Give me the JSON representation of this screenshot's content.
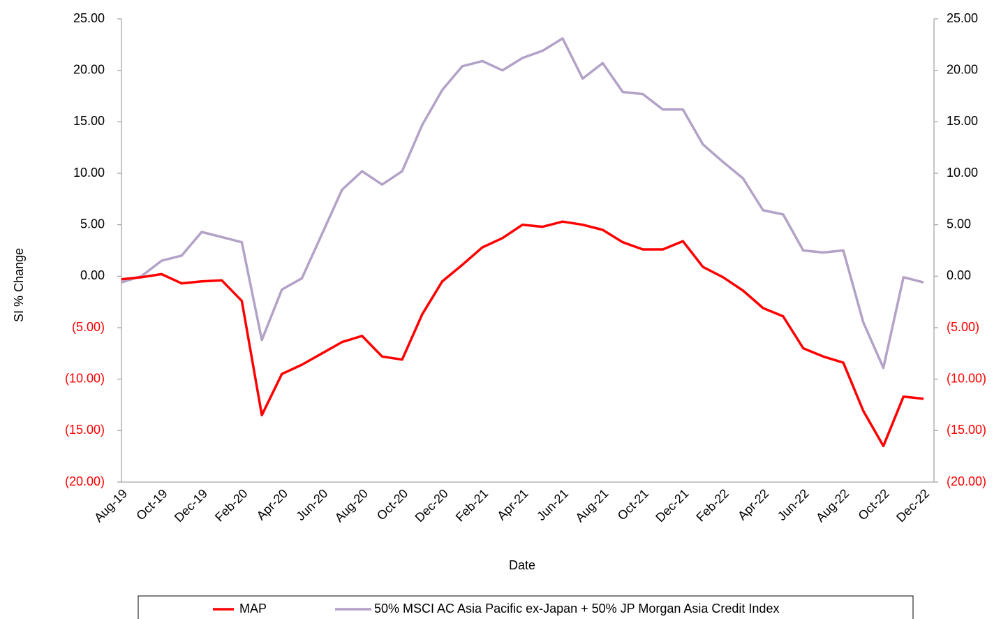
{
  "chart_data": {
    "type": "line",
    "y_label": "SI % Change",
    "x_label": "Date",
    "categories": [
      "Aug-19",
      null,
      "Oct-19",
      null,
      "Dec-19",
      null,
      "Feb-20",
      null,
      "Apr-20",
      null,
      "Jun-20",
      null,
      "Aug-20",
      null,
      "Oct-20",
      null,
      "Dec-20",
      null,
      "Feb-21",
      null,
      "Apr-21",
      null,
      "Jun-21",
      null,
      "Aug-21",
      null,
      "Oct-21",
      null,
      "Dec-21",
      null,
      "Feb-22",
      null,
      "Apr-22",
      null,
      "Jun-22",
      null,
      "Aug-22",
      null,
      "Oct-22",
      null,
      "Dec-22"
    ],
    "series": [
      {
        "name": "MAP",
        "color": "#ff0000",
        "width": 3.5,
        "values": [
          -0.3,
          -0.1,
          0.2,
          -0.7,
          -0.5,
          -0.4,
          -2.4,
          -13.5,
          -9.5,
          -8.6,
          -7.5,
          -6.4,
          -5.8,
          -7.8,
          -8.1,
          -3.7,
          -0.5,
          1.1,
          2.8,
          3.7,
          5.0,
          4.8,
          5.3,
          5.0,
          4.5,
          3.3,
          2.6,
          2.6,
          3.4,
          0.9,
          -0.1,
          -1.4,
          -3.1,
          -3.9,
          -7.0,
          -7.8,
          -8.4,
          -13.1,
          -16.5,
          -11.7,
          -11.9
        ]
      },
      {
        "name": "50% MSCI AC Asia Pacific ex-Japan + 50% JP Morgan Asia Credit Index",
        "color": "#b3a2c7",
        "width": 3.5,
        "values": [
          -0.6,
          0.0,
          1.5,
          2.0,
          4.3,
          3.8,
          3.3,
          -6.2,
          -1.3,
          -0.2,
          4.1,
          8.4,
          10.2,
          8.9,
          10.2,
          14.7,
          18.1,
          20.4,
          20.9,
          20.0,
          21.2,
          21.9,
          23.1,
          19.2,
          20.7,
          17.9,
          17.7,
          16.2,
          16.2,
          12.8,
          11.1,
          9.5,
          6.4,
          6.0,
          2.5,
          2.3,
          2.5,
          -4.5,
          -8.9,
          -0.1,
          -0.6
        ]
      }
    ],
    "ylim": [
      -20,
      25
    ],
    "yticks": [
      {
        "value": -20,
        "label": "(20.00)"
      },
      {
        "value": -15,
        "label": "(15.00)"
      },
      {
        "value": -10,
        "label": "(10.00)"
      },
      {
        "value": -5,
        "label": "(5.00)"
      },
      {
        "value": 0,
        "label": "0.00"
      },
      {
        "value": 5,
        "label": "5.00"
      },
      {
        "value": 10,
        "label": "10.00"
      },
      {
        "value": 15,
        "label": "15.00"
      },
      {
        "value": 20,
        "label": "20.00"
      },
      {
        "value": 25,
        "label": "25.00"
      }
    ],
    "negative_label_color": "#ff0000",
    "grid": false,
    "legend": "bottom"
  }
}
